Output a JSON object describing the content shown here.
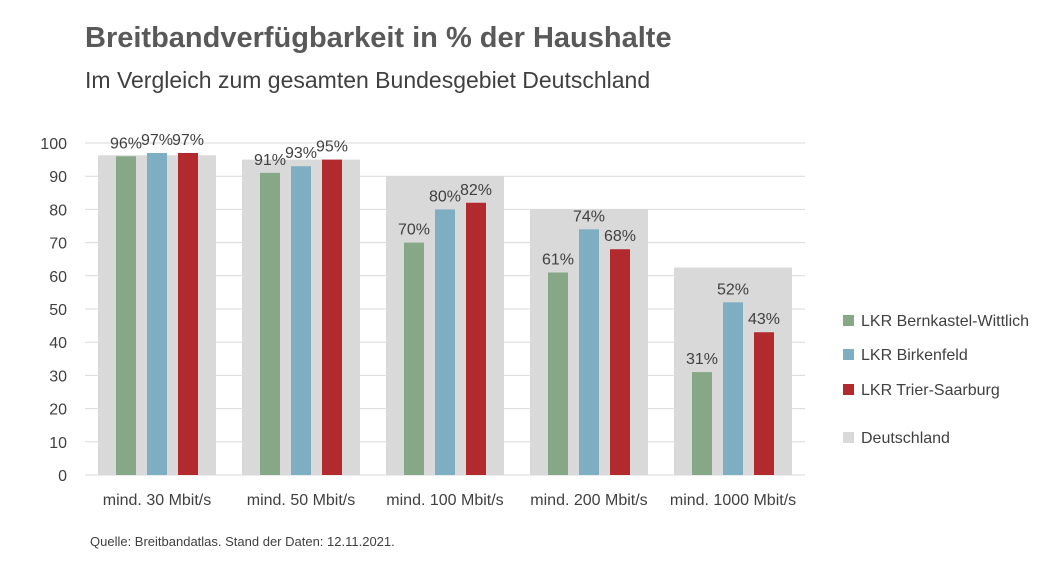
{
  "title": "Breitbandverfügbarkeit in % der Haushalte",
  "subtitle": "Im Vergleich zum gesamten Bundesgebiet Deutschland",
  "source": "Quelle: Breitbandatlas. Stand der Daten: 12.11.2021.",
  "colors": {
    "LKR Bernkastel-Wittlich": "#86a886",
    "LKR Birkenfeld": "#7eaec2",
    "LKR Trier-Saarburg": "#b32a2e",
    "Deutschland": "#d9d9d9"
  },
  "chart_data": {
    "type": "bar",
    "title": "Breitbandverfügbarkeit in % der Haushalte",
    "subtitle": "Im Vergleich zum gesamten Bundesgebiet Deutschland",
    "categories": [
      "mind. 30 Mbit/s",
      "mind. 50 Mbit/s",
      "mind. 100 Mbit/s",
      "mind. 200 Mbit/s",
      "mind. 1000 Mbit/s"
    ],
    "series": [
      {
        "name": "LKR Bernkastel-Wittlich",
        "values": [
          96,
          91,
          70,
          61,
          31
        ],
        "labels": [
          "96%",
          "91%",
          "70%",
          "61%",
          "31%"
        ]
      },
      {
        "name": "LKR Birkenfeld",
        "values": [
          97,
          93,
          80,
          74,
          52
        ],
        "labels": [
          "97%",
          "93%",
          "80%",
          "74%",
          "52%"
        ]
      },
      {
        "name": "LKR Trier-Saarburg",
        "values": [
          97,
          95,
          82,
          68,
          43
        ],
        "labels": [
          "97%",
          "95%",
          "82%",
          "68%",
          "43%"
        ]
      }
    ],
    "background_series": {
      "name": "Deutschland",
      "values": [
        96.3,
        95,
        90,
        80,
        62.5
      ]
    },
    "ylim": [
      0,
      100
    ],
    "yticks": [
      0,
      10,
      20,
      30,
      40,
      50,
      60,
      70,
      80,
      90,
      100
    ],
    "grid": true,
    "legend": "right",
    "xlabel": "",
    "ylabel": ""
  }
}
